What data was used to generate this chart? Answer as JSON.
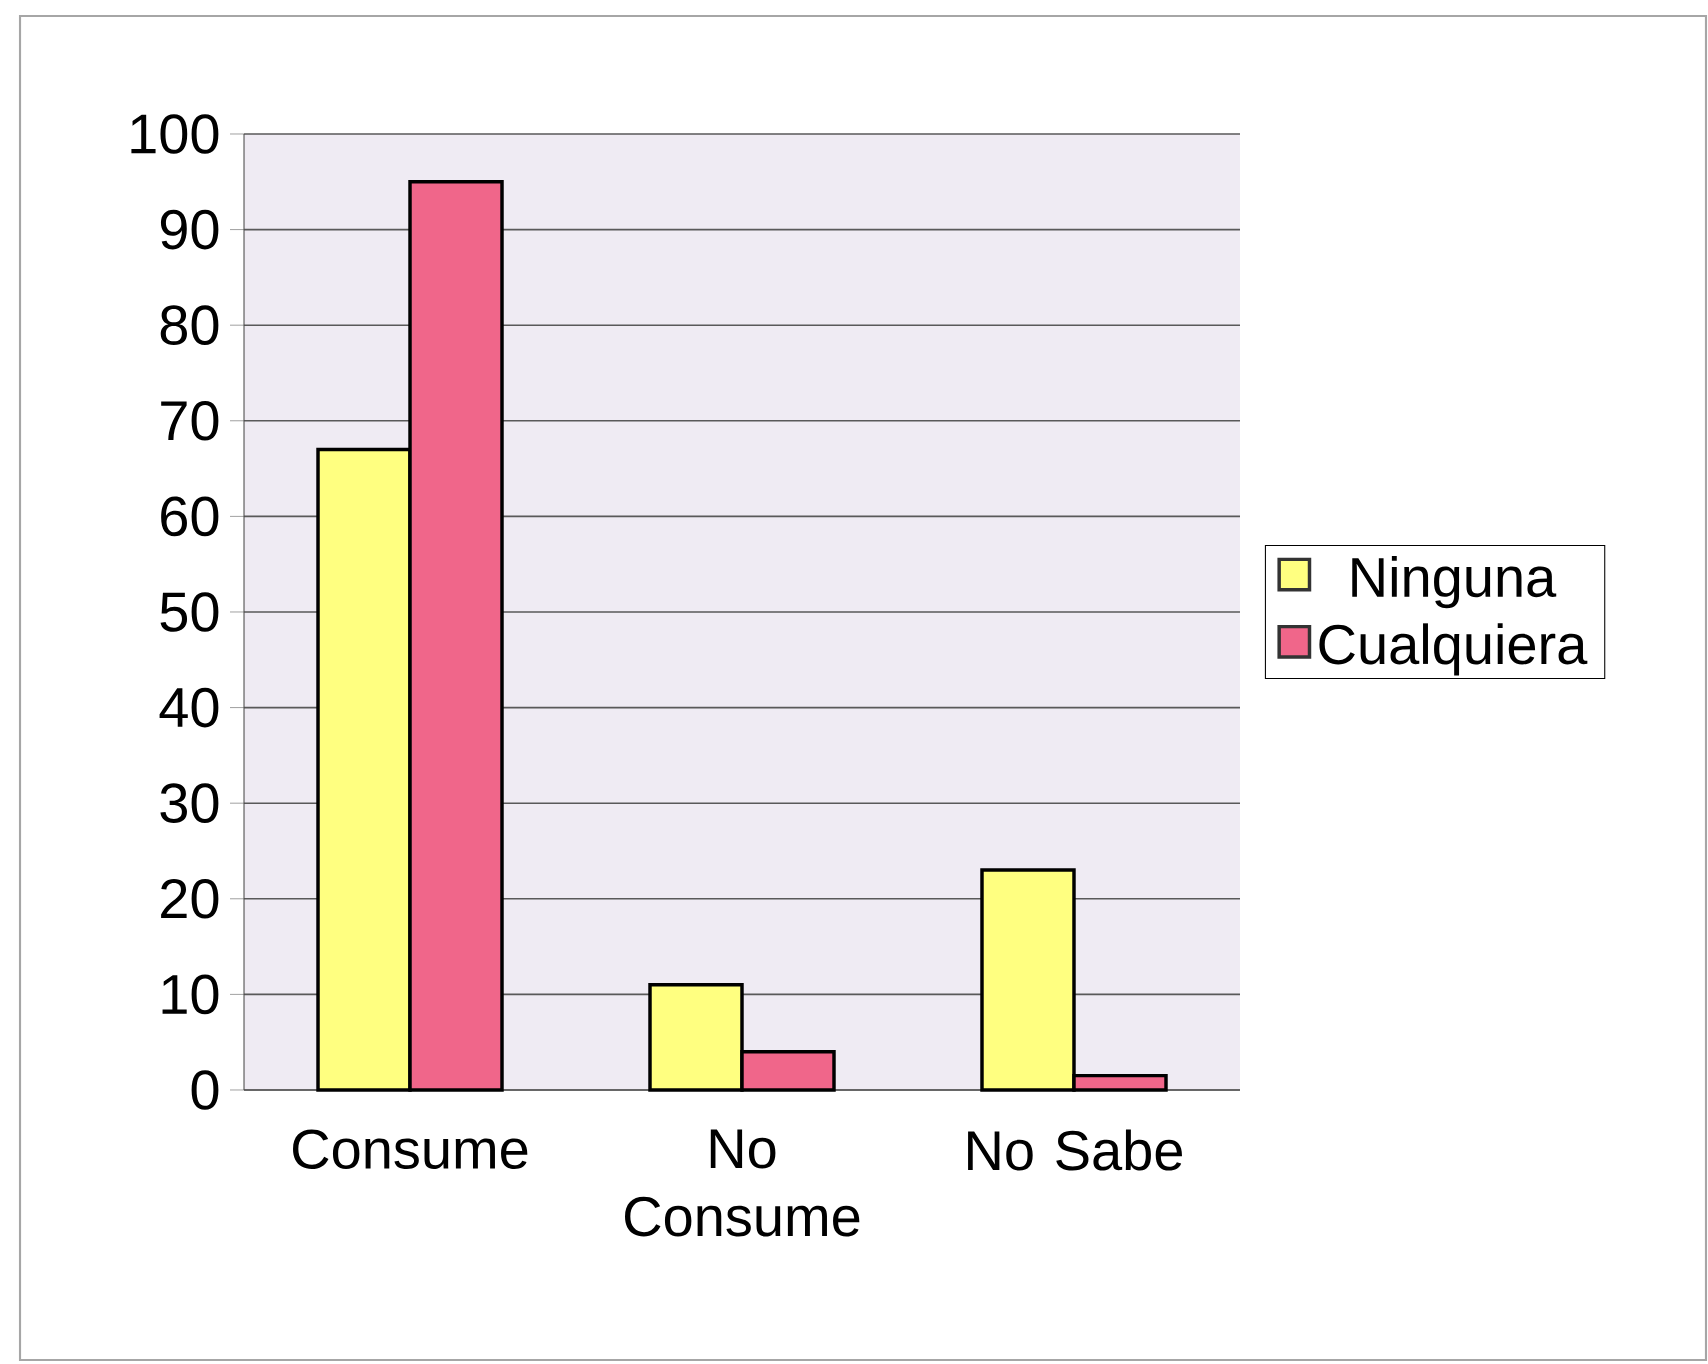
{
  "chart_data": {
    "type": "bar",
    "categories": [
      "Consume",
      "No Consume",
      "No Sabe"
    ],
    "series": [
      {
        "name": "Ninguna",
        "color": "#ffff80",
        "values": [
          67,
          11,
          23
        ]
      },
      {
        "name": "Cualquiera",
        "color": "#f0668a",
        "values": [
          95,
          4,
          1.5
        ]
      }
    ],
    "ylim": [
      0,
      100
    ],
    "yticks": [
      0,
      10,
      20,
      30,
      40,
      50,
      60,
      70,
      80,
      90,
      100
    ],
    "grid": "y",
    "legend": "right"
  }
}
